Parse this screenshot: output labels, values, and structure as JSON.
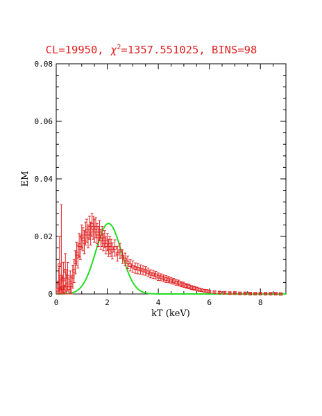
{
  "chart_data": {
    "type": "scatter",
    "title_parts": {
      "prefix": "CL=19950, ",
      "chi": "χ",
      "sup": "2",
      "suffix": "=1357.551025, BINS=98"
    },
    "xlabel": "kT (keV)",
    "ylabel": "EM",
    "xlim": [
      0,
      9
    ],
    "ylim": [
      0,
      0.08
    ],
    "x_ticks": [
      0,
      2,
      4,
      6,
      8
    ],
    "y_ticks": [
      0,
      0.02,
      0.04,
      0.06,
      0.08
    ],
    "x_tick_labels": [
      "0",
      "2",
      "4",
      "6",
      "8"
    ],
    "y_tick_labels": [
      "0",
      "0.02",
      "0.04",
      "0.06",
      "0.08"
    ],
    "grid": false,
    "colors": {
      "data": "#e02020",
      "model": "#22dd22",
      "axes": "#000000"
    },
    "series": [
      {
        "kind": "data-with-errorbars",
        "points": [
          [
            0.05,
            0.0015,
            0.002
          ],
          [
            0.1,
            0.004,
            0.005
          ],
          [
            0.13,
            0.01,
            0.01
          ],
          [
            0.16,
            0.002,
            0.003
          ],
          [
            0.2,
            0.006,
            0.025
          ],
          [
            0.24,
            0.002,
            0.004
          ],
          [
            0.28,
            0.005,
            0.006
          ],
          [
            0.32,
            0.001,
            0.002
          ],
          [
            0.36,
            0.008,
            0.006
          ],
          [
            0.4,
            0.003,
            0.004
          ],
          [
            0.45,
            0.006,
            0.005
          ],
          [
            0.5,
            0.002,
            0.003
          ],
          [
            0.55,
            0.004,
            0.004
          ],
          [
            0.6,
            0.003,
            0.003
          ],
          [
            0.65,
            0.006,
            0.004
          ],
          [
            0.7,
            0.008,
            0.004
          ],
          [
            0.75,
            0.011,
            0.004
          ],
          [
            0.8,
            0.014,
            0.004
          ],
          [
            0.85,
            0.013,
            0.004
          ],
          [
            0.9,
            0.017,
            0.004
          ],
          [
            0.95,
            0.016,
            0.004
          ],
          [
            1.0,
            0.02,
            0.004
          ],
          [
            1.05,
            0.019,
            0.004
          ],
          [
            1.1,
            0.018,
            0.004
          ],
          [
            1.15,
            0.021,
            0.004
          ],
          [
            1.2,
            0.022,
            0.004
          ],
          [
            1.25,
            0.02,
            0.004
          ],
          [
            1.3,
            0.023,
            0.004
          ],
          [
            1.35,
            0.021,
            0.004
          ],
          [
            1.4,
            0.024,
            0.004
          ],
          [
            1.45,
            0.023,
            0.004
          ],
          [
            1.5,
            0.022,
            0.004
          ],
          [
            1.55,
            0.023,
            0.0035
          ],
          [
            1.6,
            0.021,
            0.0035
          ],
          [
            1.65,
            0.02,
            0.0035
          ],
          [
            1.7,
            0.022,
            0.0035
          ],
          [
            1.75,
            0.019,
            0.0035
          ],
          [
            1.8,
            0.02,
            0.0035
          ],
          [
            1.85,
            0.018,
            0.003
          ],
          [
            1.9,
            0.019,
            0.003
          ],
          [
            1.95,
            0.017,
            0.003
          ],
          [
            2.0,
            0.018,
            0.003
          ],
          [
            2.05,
            0.016,
            0.003
          ],
          [
            2.1,
            0.017,
            0.003
          ],
          [
            2.15,
            0.016,
            0.003
          ],
          [
            2.2,
            0.015,
            0.0028
          ],
          [
            2.3,
            0.016,
            0.0028
          ],
          [
            2.4,
            0.014,
            0.0026
          ],
          [
            2.5,
            0.015,
            0.0026
          ],
          [
            2.6,
            0.013,
            0.0024
          ],
          [
            2.7,
            0.012,
            0.0022
          ],
          [
            2.8,
            0.011,
            0.0022
          ],
          [
            2.9,
            0.01,
            0.002
          ],
          [
            3.0,
            0.0095,
            0.002
          ],
          [
            3.1,
            0.009,
            0.0018
          ],
          [
            3.2,
            0.0088,
            0.0018
          ],
          [
            3.3,
            0.0085,
            0.0016
          ],
          [
            3.4,
            0.0082,
            0.0016
          ],
          [
            3.5,
            0.008,
            0.0015
          ],
          [
            3.6,
            0.0075,
            0.0015
          ],
          [
            3.7,
            0.007,
            0.0014
          ],
          [
            3.8,
            0.0068,
            0.0014
          ],
          [
            3.9,
            0.0065,
            0.0013
          ],
          [
            4.0,
            0.006,
            0.0013
          ],
          [
            4.1,
            0.0058,
            0.0012
          ],
          [
            4.2,
            0.0055,
            0.0012
          ],
          [
            4.3,
            0.0052,
            0.0012
          ],
          [
            4.4,
            0.005,
            0.0011
          ],
          [
            4.5,
            0.0046,
            0.0011
          ],
          [
            4.6,
            0.0044,
            0.001
          ],
          [
            4.7,
            0.004,
            0.001
          ],
          [
            4.8,
            0.0038,
            0.001
          ],
          [
            4.9,
            0.0034,
            0.0009
          ],
          [
            5.0,
            0.0032,
            0.0009
          ],
          [
            5.1,
            0.0028,
            0.0008
          ],
          [
            5.2,
            0.0026,
            0.0008
          ],
          [
            5.3,
            0.0022,
            0.0007
          ],
          [
            5.4,
            0.002,
            0.0007
          ],
          [
            5.5,
            0.0018,
            0.0006
          ],
          [
            5.6,
            0.0015,
            0.0006
          ],
          [
            5.7,
            0.0013,
            0.0005
          ],
          [
            5.8,
            0.0011,
            0.0005
          ],
          [
            5.9,
            0.001,
            0.0005
          ],
          [
            6.0,
            0.0008,
            0.0004
          ],
          [
            6.2,
            0.0006,
            0.0004
          ],
          [
            6.4,
            0.0005,
            0.0003
          ],
          [
            6.6,
            0.0004,
            0.0003
          ],
          [
            6.8,
            0.0003,
            0.0003
          ],
          [
            7.0,
            0.0003,
            0.0002
          ],
          [
            7.2,
            0.0002,
            0.0002
          ],
          [
            7.4,
            0.0002,
            0.0002
          ],
          [
            7.6,
            0.0001,
            0.0002
          ],
          [
            7.8,
            0.0001,
            0.0001
          ],
          [
            8.0,
            0.0001,
            0.0001
          ],
          [
            8.2,
            0.0001,
            0.0001
          ],
          [
            8.4,
            0.0001,
            0.0001
          ],
          [
            8.6,
            0.0001,
            0.0001
          ],
          [
            8.8,
            0.0,
            0.0001
          ]
        ]
      },
      {
        "kind": "model-curve",
        "gaussian": {
          "peak_x": 2.05,
          "peak_y": 0.0245,
          "sigma": 0.5
        }
      }
    ]
  }
}
